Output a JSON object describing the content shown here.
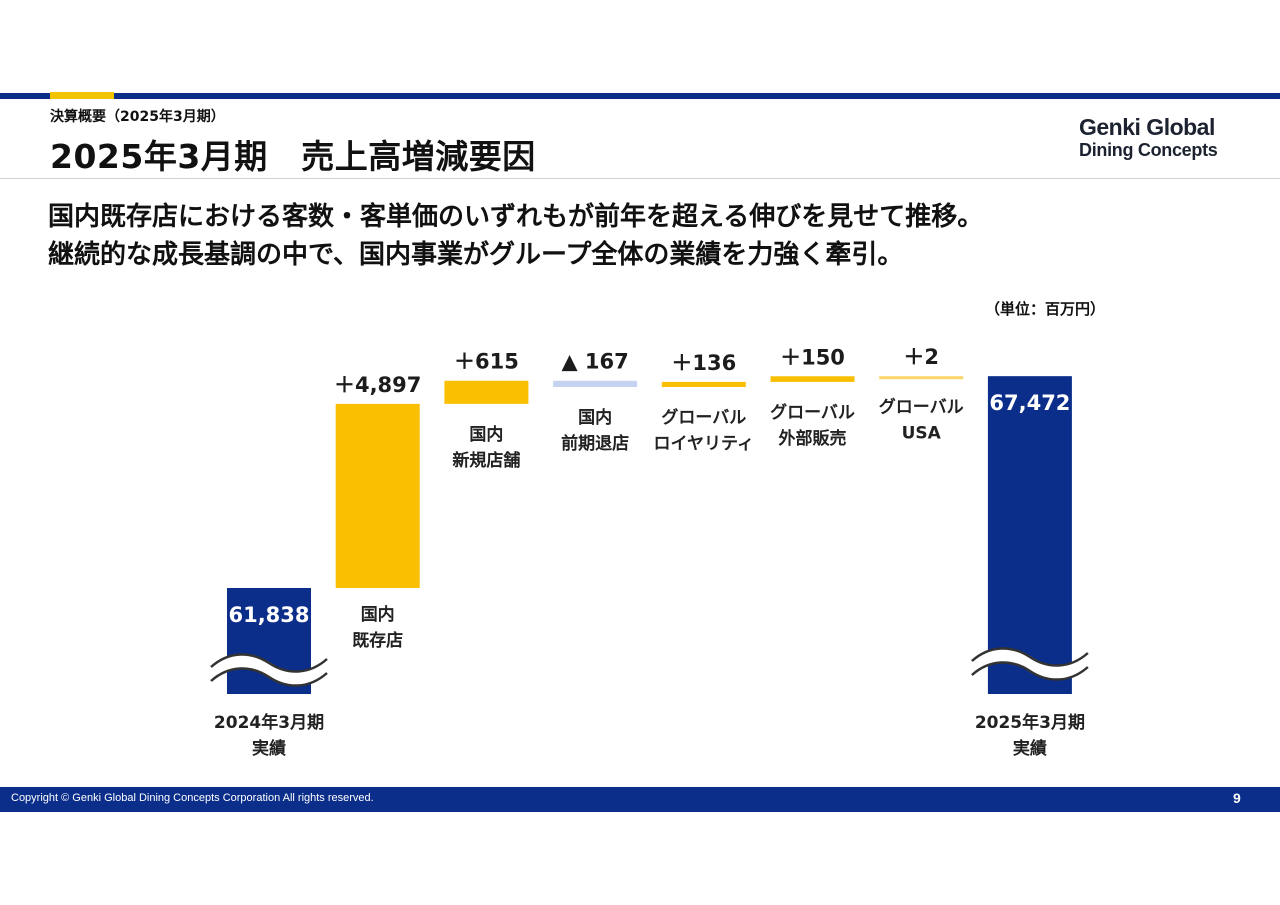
{
  "header": {
    "section_label": "決算概要（2025年3月期）",
    "title": "2025年3月期　売上高増減要因",
    "logo_line1": "Genki Global",
    "logo_line2": "Dining Concepts"
  },
  "headline": {
    "line1": "国内既存店における客数・客単価のいずれもが前年を超える伸びを見せて推移。",
    "line2": "継続的な成長基調の中で、国内事業がグループ全体の業績を力強く牽引。"
  },
  "unit_label": "（単位：百万円）",
  "footer": {
    "copyright": "Copyright © Genki Global Dining Concepts Corporation All rights reserved.",
    "page_number": "9"
  },
  "colors": {
    "total": "#0b2e8a",
    "increase": "#f9bf00",
    "decrease": "#c5d3f0",
    "increase_small": "#fbd56a"
  },
  "chart_data": {
    "type": "bar",
    "subtype": "waterfall",
    "axis_break": true,
    "steps": [
      {
        "kind": "total",
        "label_lines": [
          "2024年3月期",
          "実績"
        ],
        "value": 61838,
        "display": "61,838"
      },
      {
        "kind": "increase",
        "label_lines": [
          "国内",
          "既存店"
        ],
        "value": 4897,
        "display": "＋4,897"
      },
      {
        "kind": "increase",
        "label_lines": [
          "国内",
          "新規店舗"
        ],
        "value": 615,
        "display": "＋615"
      },
      {
        "kind": "decrease",
        "label_lines": [
          "国内",
          "前期退店"
        ],
        "value": -167,
        "display": "▲ 167"
      },
      {
        "kind": "increase",
        "label_lines": [
          "グローバル",
          "ロイヤリティ"
        ],
        "value": 136,
        "display": "＋136"
      },
      {
        "kind": "increase",
        "label_lines": [
          "グローバル",
          "外部販売"
        ],
        "value": 150,
        "display": "＋150"
      },
      {
        "kind": "increase",
        "label_lines": [
          "グローバル",
          "USA"
        ],
        "value": 2,
        "display": "＋2"
      },
      {
        "kind": "total",
        "label_lines": [
          "2025年3月期",
          "実績"
        ],
        "value": 67472,
        "display": "67,472"
      }
    ]
  }
}
